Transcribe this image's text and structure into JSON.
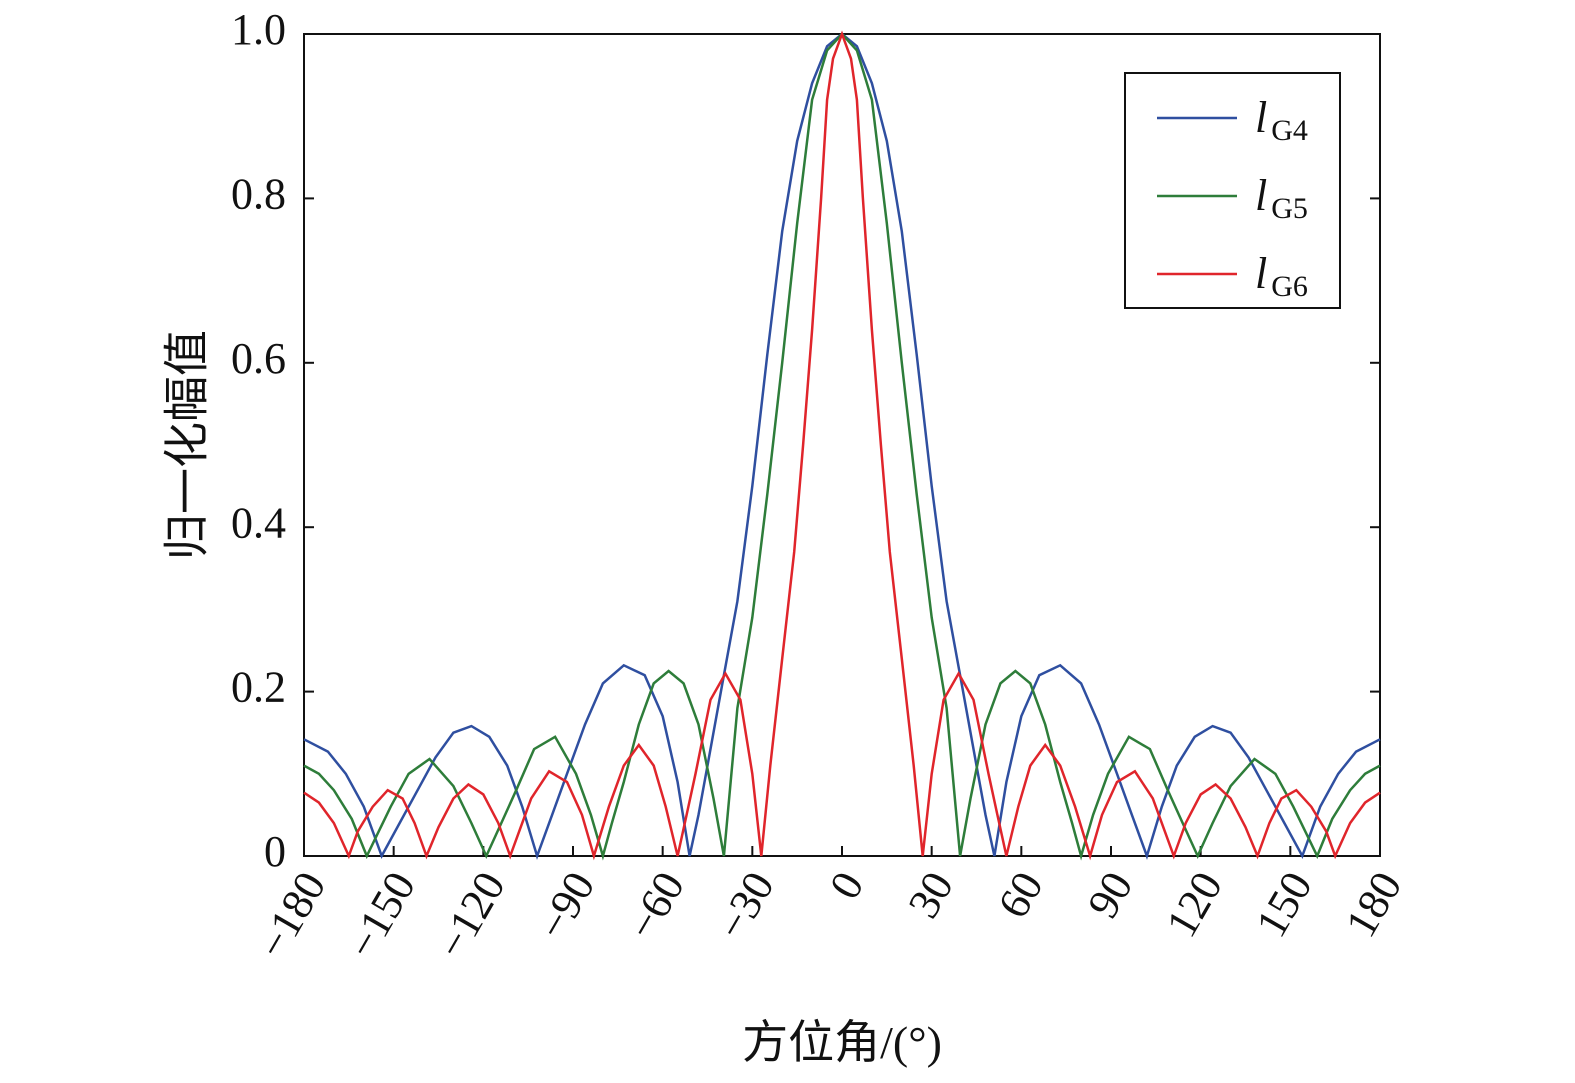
{
  "chart_data": {
    "type": "line",
    "xlabel": "方位角/(°)",
    "ylabel": "归一化幅值",
    "xlim": [
      -180,
      180
    ],
    "ylim": [
      0,
      1
    ],
    "xticks": [
      {
        "value": -180,
        "label": "−180"
      },
      {
        "value": -150,
        "label": "−150"
      },
      {
        "value": -120,
        "label": "−120"
      },
      {
        "value": -90,
        "label": "−90"
      },
      {
        "value": -60,
        "label": "−60"
      },
      {
        "value": -30,
        "label": "−30"
      },
      0,
      30,
      60,
      90,
      120,
      150,
      180
    ],
    "yticks": [
      0,
      0.2,
      0.4,
      0.6,
      0.8,
      {
        "value": 1,
        "label": "1.0"
      }
    ],
    "legend": "upper right",
    "series": [
      {
        "name": "lG4",
        "color": "#2f4fa0",
        "x": [
          -180,
          -172,
          -166,
          -160,
          -154,
          -148,
          -142,
          -136,
          -130,
          -124,
          -118,
          -112,
          -107,
          -102,
          -97,
          -92,
          -86,
          -80,
          -73,
          -66,
          -60,
          -55,
          -51,
          -48,
          -45,
          -40,
          -35,
          -30,
          -25,
          -20,
          -15,
          -10,
          -5,
          0,
          5,
          10,
          15,
          20,
          25,
          30,
          35,
          40,
          45,
          48,
          51,
          55,
          60,
          66,
          73,
          80,
          86,
          92,
          97,
          102,
          107,
          112,
          118,
          124,
          130,
          136,
          142,
          148,
          154,
          160,
          166,
          172,
          180
        ],
        "values": [
          0.142,
          0.127,
          0.1,
          0.06,
          0,
          0.04,
          0.08,
          0.12,
          0.15,
          0.158,
          0.145,
          0.11,
          0.06,
          0,
          0.05,
          0.1,
          0.16,
          0.21,
          0.232,
          0.22,
          0.17,
          0.09,
          0,
          0.05,
          0.11,
          0.21,
          0.31,
          0.45,
          0.61,
          0.76,
          0.87,
          0.94,
          0.985,
          1,
          0.985,
          0.94,
          0.87,
          0.76,
          0.61,
          0.45,
          0.31,
          0.21,
          0.11,
          0.05,
          0,
          0.09,
          0.17,
          0.22,
          0.232,
          0.21,
          0.16,
          0.1,
          0.05,
          0,
          0.06,
          0.11,
          0.145,
          0.158,
          0.15,
          0.12,
          0.08,
          0.04,
          0,
          0.06,
          0.1,
          0.127,
          0.142
        ]
      },
      {
        "name": "lG5",
        "color": "#2e7d3a",
        "x": [
          -180,
          -175,
          -170,
          -164,
          -159,
          -151,
          -145,
          -138,
          -130,
          -124,
          -119,
          -114,
          -109,
          -103,
          -96,
          -89,
          -84,
          -80,
          -77,
          -73,
          -68,
          -63,
          -58,
          -53,
          -48,
          -43,
          -39.5,
          -37,
          -35,
          -30,
          -25,
          -20,
          -15,
          -10,
          -5,
          0,
          5,
          10,
          15,
          20,
          25,
          30,
          35,
          37,
          39.5,
          43,
          48,
          53,
          58,
          63,
          68,
          73,
          77,
          80,
          84,
          89,
          96,
          103,
          109,
          114,
          119,
          124,
          130,
          138,
          145,
          151,
          159,
          164,
          170,
          175,
          180
        ],
        "values": [
          0.11,
          0.1,
          0.08,
          0.045,
          0,
          0.06,
          0.1,
          0.118,
          0.085,
          0.04,
          0,
          0.04,
          0.08,
          0.13,
          0.145,
          0.1,
          0.05,
          0,
          0.04,
          0.09,
          0.16,
          0.21,
          0.225,
          0.21,
          0.16,
          0.07,
          0,
          0.1,
          0.18,
          0.29,
          0.44,
          0.6,
          0.77,
          0.92,
          0.98,
          1,
          0.98,
          0.92,
          0.77,
          0.6,
          0.44,
          0.29,
          0.18,
          0.1,
          0,
          0.07,
          0.16,
          0.21,
          0.225,
          0.21,
          0.16,
          0.09,
          0.04,
          0,
          0.05,
          0.1,
          0.145,
          0.13,
          0.08,
          0.04,
          0,
          0.04,
          0.085,
          0.118,
          0.1,
          0.06,
          0,
          0.045,
          0.08,
          0.1,
          0.11
        ]
      },
      {
        "name": "lG6",
        "color": "#e0252b",
        "x": [
          -180,
          -175,
          -170,
          -165,
          -162,
          -157,
          -152,
          -147,
          -143,
          -139,
          -135,
          -130,
          -125,
          -120,
          -115,
          -111,
          -108,
          -104,
          -98,
          -92,
          -87,
          -83,
          -78,
          -73,
          -68,
          -63,
          -59,
          -55,
          -52,
          -49,
          -44,
          -39,
          -34,
          -30,
          -27,
          -24,
          -20,
          -16,
          -13,
          -10,
          -7,
          -5,
          -3,
          0,
          3,
          5,
          7,
          10,
          13,
          16,
          20,
          24,
          27,
          30,
          34,
          39,
          44,
          49,
          52,
          55,
          59,
          63,
          68,
          73,
          78,
          83,
          87,
          92,
          98,
          104,
          108,
          111,
          115,
          120,
          125,
          130,
          135,
          139,
          143,
          147,
          152,
          157,
          162,
          165,
          170,
          175,
          180
        ],
        "values": [
          0.077,
          0.065,
          0.04,
          0,
          0.03,
          0.06,
          0.08,
          0.07,
          0.04,
          0,
          0.035,
          0.07,
          0.087,
          0.075,
          0.04,
          0,
          0.03,
          0.07,
          0.103,
          0.09,
          0.05,
          0,
          0.06,
          0.11,
          0.135,
          0.11,
          0.06,
          0,
          0.05,
          0.1,
          0.19,
          0.222,
          0.19,
          0.1,
          0,
          0.11,
          0.24,
          0.37,
          0.5,
          0.64,
          0.8,
          0.92,
          0.97,
          1,
          0.97,
          0.92,
          0.8,
          0.64,
          0.5,
          0.37,
          0.24,
          0.11,
          0,
          0.1,
          0.19,
          0.222,
          0.19,
          0.1,
          0.05,
          0,
          0.06,
          0.11,
          0.135,
          0.11,
          0.06,
          0,
          0.05,
          0.09,
          0.103,
          0.07,
          0.03,
          0,
          0.04,
          0.075,
          0.087,
          0.07,
          0.035,
          0,
          0.04,
          0.07,
          0.08,
          0.06,
          0.03,
          0,
          0.04,
          0.065,
          0.077
        ]
      }
    ]
  }
}
